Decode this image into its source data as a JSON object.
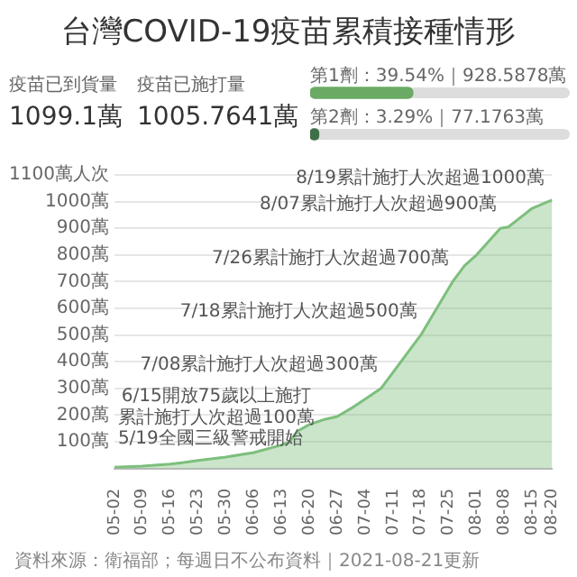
{
  "chart_data": [
    {
      "type": "other",
      "title": "台灣COVID-19疫苗累積接種情形",
      "annotations": [
        "疫苗已到貨量",
        "1099.1萬",
        "疫苗已施打量",
        "1005.7641萬"
      ]
    },
    {
      "type": "bar",
      "orientation": "horizontal",
      "categories": [
        null,
        null
      ],
      "values": [
        39.54,
        3.29
      ],
      "value_labels": [
        "第1劑：39.54%｜928.5878萬",
        "第2劑：3.29%｜77.1763萬"
      ],
      "colors": [
        "#6aaa64",
        "#3f6f48"
      ],
      "xlim": [
        0,
        100
      ],
      "tick_labels": false
    },
    {
      "type": "area",
      "x": [
        "--05-02",
        "--05-09",
        "--05-16",
        "--05-19",
        "--05-23",
        "--05-30",
        "--06-06",
        "--06-13",
        "--06-15",
        "--06-17",
        "--06-20",
        "--06-24",
        "--06-27",
        "--07-01",
        "--07-04",
        "--07-08",
        "--07-11",
        "--07-15",
        "--07-18",
        "--07-22",
        "--07-26",
        "--07-29",
        "--08-01",
        "--08-04",
        "--08-07",
        "--08-09",
        "--08-12",
        "--08-15",
        "--08-19",
        "--08-20"
      ],
      "series": [
        {
          "color": "#7cbf7c",
          "values": [
            5,
            9,
            17,
            22,
            30,
            43,
            60,
            88,
            100,
            140,
            165,
            185,
            195,
            230,
            260,
            300,
            360,
            440,
            500,
            600,
            700,
            760,
            800,
            850,
            900,
            905,
            940,
            975,
            1000,
            1006
          ]
        }
      ],
      "xlim": [
        "--05-02",
        "--08-20"
      ],
      "xticks": [
        {
          "value": "--05-02",
          "label": "05-02"
        },
        {
          "value": "--05-09",
          "label": "05-09"
        },
        {
          "value": "--05-16",
          "label": "05-16"
        },
        {
          "value": "--05-23",
          "label": "05-23"
        },
        {
          "value": "--05-30",
          "label": "05-30"
        },
        {
          "value": "--06-06",
          "label": "06-06"
        },
        {
          "value": "--06-13",
          "label": "06-13"
        },
        {
          "value": "--06-20",
          "label": "06-20"
        },
        {
          "value": "--06-27",
          "label": "06-27"
        },
        {
          "value": "--07-04",
          "label": "07-04"
        },
        {
          "value": "--07-11",
          "label": "07-11"
        },
        {
          "value": "--07-18",
          "label": "07-18"
        },
        {
          "value": "--07-25",
          "label": "07-25"
        },
        {
          "value": "--08-01",
          "label": "08-01"
        },
        {
          "value": "--08-08",
          "label": "08-08"
        },
        {
          "value": "--08-15",
          "label": "08-15"
        },
        {
          "value": "--08-20",
          "label": "08-20"
        }
      ],
      "ylim": [
        0,
        1100
      ],
      "yticks": [
        {
          "value": 100,
          "label": "100萬"
        },
        {
          "value": 200,
          "label": "200萬"
        },
        {
          "value": 300,
          "label": "300萬"
        },
        {
          "value": 400,
          "label": "400萬"
        },
        {
          "value": 500,
          "label": "500萬"
        },
        {
          "value": 600,
          "label": "600萬"
        },
        {
          "value": 700,
          "label": "700萬"
        },
        {
          "value": 800,
          "label": "800萬"
        },
        {
          "value": 900,
          "label": "900萬"
        },
        {
          "value": 1000,
          "label": "1000萬"
        },
        {
          "value": 1100,
          "label": "1100萬人次"
        }
      ],
      "grid": "y",
      "annotations": [
        {
          "text": "8/19累計施打人次超過1000萬",
          "x": "--08-19",
          "y": 1000
        },
        {
          "text": "8/07累計施打人次超過900萬",
          "x": "--08-07",
          "y": 900
        },
        {
          "text": "7/26累計施打人次超過700萬",
          "x": "--07-26",
          "y": 700
        },
        {
          "text": "7/18累計施打人次超過500萬",
          "x": "--07-18",
          "y": 500
        },
        {
          "text": "7/08累計施打人次超過300萬",
          "x": "--07-08",
          "y": 300
        },
        {
          "text": "6/15開放75歲以上施打累計施打人次超過100萬",
          "x": "--06-15",
          "y": 100
        },
        {
          "text": "5/19全國三級警戒開始",
          "x": "--05-19",
          "y": 22
        },
        "資料來源：衛福部；每週日不公布資料｜2021-08-21更新"
      ]
    }
  ]
}
